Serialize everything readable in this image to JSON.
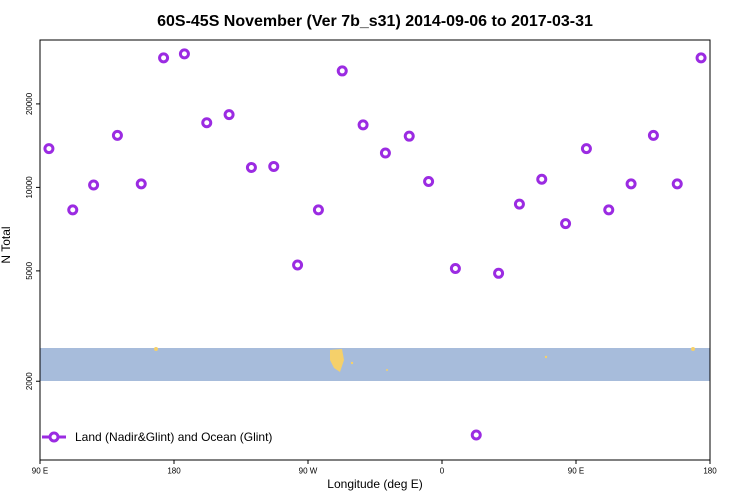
{
  "chart_data": {
    "type": "scatter",
    "title": "60S-45S November (Ver 7b_s31)   2014-09-06 to 2017-03-31",
    "xlabel": "Longitude (deg E)",
    "ylabel": "N Total",
    "series": [
      {
        "name": "Land (Nadir&Glint) and Ocean (Glint)",
        "color": "#9b2be2",
        "x": [
          -264,
          -248,
          -234,
          -218,
          -202,
          -187,
          -173,
          -158,
          -143,
          -128,
          -113,
          -97,
          -83,
          -67,
          -53,
          -38,
          -22,
          -9,
          9,
          23,
          38,
          52,
          67,
          83,
          97,
          112,
          127,
          142,
          158,
          174
        ],
        "values": [
          13800,
          8300,
          10200,
          15400,
          10300,
          29300,
          30300,
          17100,
          18300,
          11800,
          11900,
          5250,
          8300,
          26300,
          16800,
          13300,
          15300,
          10500,
          5100,
          1280,
          4900,
          8700,
          10700,
          7400,
          13800,
          8300,
          10300,
          15400,
          10300,
          29300
        ]
      }
    ],
    "xlim": [
      -270,
      180
    ],
    "xticks": [
      {
        "value": -270,
        "label": "90 E"
      },
      {
        "value": -180,
        "label": "180"
      },
      {
        "value": -90,
        "label": "90 W"
      },
      0,
      {
        "value": 90,
        "label": "90 E"
      },
      180
    ],
    "ylim": [
      1040,
      34000
    ],
    "log_y": true,
    "yticks": [
      2000,
      5000,
      10000,
      20000
    ],
    "legend": "lower left"
  }
}
